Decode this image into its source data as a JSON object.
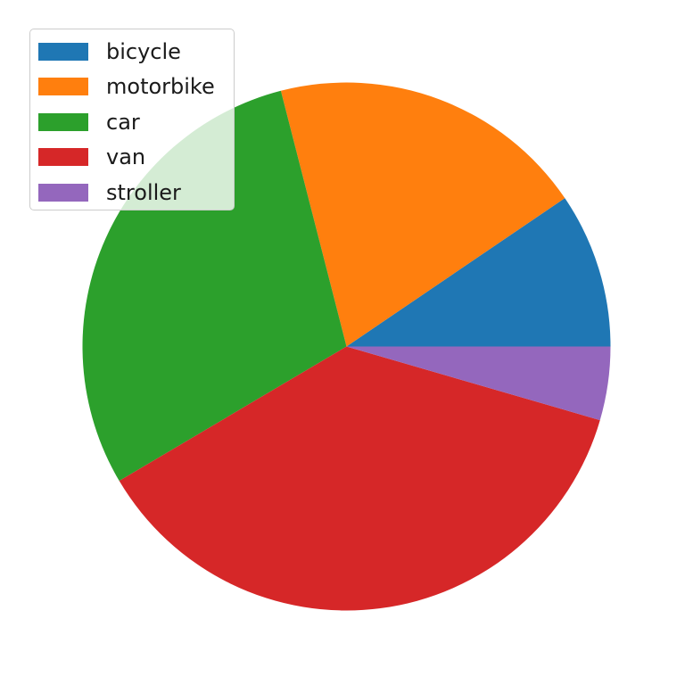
{
  "chart_data": {
    "type": "pie",
    "title": "",
    "labels": [
      "bicycle",
      "motorbike",
      "car",
      "van",
      "stroller"
    ],
    "values": [
      9.5,
      19.5,
      29.5,
      37,
      4.5
    ],
    "colors": [
      "#1f77b4",
      "#ff7f0e",
      "#2ca02c",
      "#d62728",
      "#9467bd"
    ],
    "start_angle": 0,
    "direction": "counterclockwise",
    "legend": {
      "placement": "upper-left",
      "entries": [
        {
          "label": "bicycle",
          "color": "#1f77b4"
        },
        {
          "label": "motorbike",
          "color": "#ff7f0e"
        },
        {
          "label": "car",
          "color": "#2ca02c"
        },
        {
          "label": "van",
          "color": "#d62728"
        },
        {
          "label": "stroller",
          "color": "#9467bd"
        }
      ]
    }
  }
}
